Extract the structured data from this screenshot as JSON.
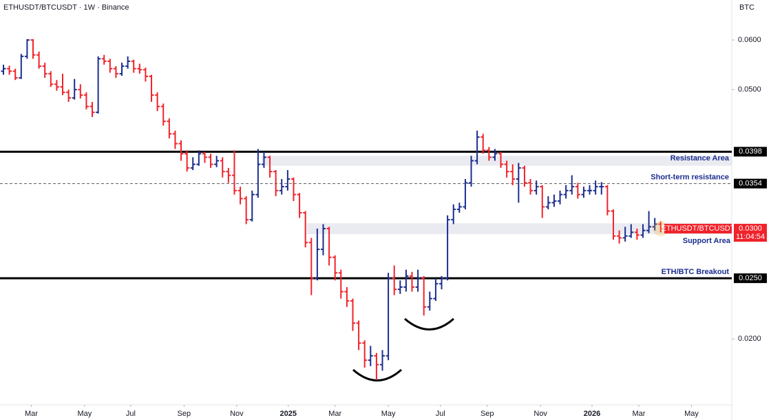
{
  "header": {
    "symbol": "ETHUSDT/BTCUSDT · 1W · Binance"
  },
  "chart_data": {
    "type": "ohlc",
    "currency": "BTC",
    "log_scale": true,
    "up_color": "#1a2d8f",
    "down_color": "#f0222a",
    "xlim": [
      -0.58,
      123.0
    ],
    "xticks": [
      {
        "value": 4.7,
        "label": "Mar"
      },
      {
        "value": 13.7,
        "label": "May"
      },
      {
        "value": 21.5,
        "label": "Jul"
      },
      {
        "value": 30.5,
        "label": "Sep"
      },
      {
        "value": 39.4,
        "label": "Nov"
      },
      {
        "value": 48.1,
        "label": "2025"
      },
      {
        "value": 56.0,
        "label": "Mar"
      },
      {
        "value": 65.0,
        "label": "May"
      },
      {
        "value": 73.8,
        "label": "Jul"
      },
      {
        "value": 81.7,
        "label": "Sep"
      },
      {
        "value": 90.7,
        "label": "Nov"
      },
      {
        "value": 99.4,
        "label": "2026"
      },
      {
        "value": 107.3,
        "label": "Mar"
      },
      {
        "value": 116.2,
        "label": "May"
      }
    ],
    "ylim": [
      0.0157,
      0.0695
    ],
    "yticks": [
      {
        "value": 0.06,
        "label": "0.0600"
      },
      {
        "value": 0.05,
        "label": "0.0500"
      },
      {
        "value": 0.02,
        "label": "0.0200"
      }
    ],
    "open": [
      0.0535,
      0.054,
      0.0535,
      0.0522,
      0.0565,
      0.06,
      0.0568,
      0.0545,
      0.053,
      0.051,
      0.0505,
      0.0495,
      0.0485,
      0.05,
      0.049,
      0.047,
      0.046,
      0.056,
      0.0555,
      0.054,
      0.053,
      0.0545,
      0.0555,
      0.054,
      0.0538,
      0.0525,
      0.049,
      0.047,
      0.0445,
      0.0425,
      0.041,
      0.0395,
      0.0375,
      0.038,
      0.0395,
      0.039,
      0.038,
      0.0385,
      0.037,
      0.0365,
      0.0345,
      0.0335,
      0.031,
      0.034,
      0.038,
      0.039,
      0.037,
      0.0345,
      0.035,
      0.036,
      0.034,
      0.0318,
      0.0285,
      0.025,
      0.0278,
      0.03,
      0.027,
      0.0255,
      0.0238,
      0.023,
      0.0212,
      0.0197,
      0.0185,
      0.0188,
      0.0182,
      0.0188,
      0.025,
      0.024,
      0.0242,
      0.0252,
      0.0242,
      0.025,
      0.0225,
      0.0232,
      0.0245,
      0.025,
      0.031,
      0.0322,
      0.0325,
      0.0355,
      0.0385,
      0.042,
      0.04,
      0.039,
      0.0395,
      0.038,
      0.037,
      0.036,
      0.0375,
      0.0355,
      0.0345,
      0.035,
      0.0325,
      0.033,
      0.0332,
      0.034,
      0.0345,
      0.035,
      0.034,
      0.0345,
      0.0345,
      0.035,
      0.035,
      0.032,
      0.0292,
      0.029,
      0.0292,
      0.0296,
      0.0293,
      0.0298,
      0.0302,
      0.0305
    ],
    "high": [
      0.0548,
      0.0546,
      0.054,
      0.057,
      0.0602,
      0.0602,
      0.0575,
      0.0552,
      0.0535,
      0.0518,
      0.053,
      0.05,
      0.052,
      0.051,
      0.0495,
      0.0478,
      0.0565,
      0.0568,
      0.056,
      0.0545,
      0.0552,
      0.0565,
      0.0558,
      0.055,
      0.0542,
      0.0528,
      0.0495,
      0.0475,
      0.045,
      0.043,
      0.0415,
      0.04,
      0.039,
      0.04,
      0.0398,
      0.0395,
      0.0392,
      0.039,
      0.0375,
      0.04,
      0.035,
      0.0338,
      0.0345,
      0.0402,
      0.0398,
      0.0392,
      0.0372,
      0.036,
      0.0372,
      0.0362,
      0.0342,
      0.032,
      0.029,
      0.03,
      0.0305,
      0.0302,
      0.0272,
      0.0258,
      0.0242,
      0.0232,
      0.0214,
      0.0199,
      0.0195,
      0.019,
      0.0192,
      0.0255,
      0.0262,
      0.0248,
      0.0258,
      0.0256,
      0.0258,
      0.0252,
      0.0238,
      0.025,
      0.0252,
      0.0315,
      0.0328,
      0.033,
      0.036,
      0.0392,
      0.043,
      0.0425,
      0.0405,
      0.0402,
      0.0398,
      0.0385,
      0.038,
      0.0382,
      0.0378,
      0.036,
      0.0358,
      0.0352,
      0.0338,
      0.034,
      0.0345,
      0.0352,
      0.0365,
      0.0355,
      0.035,
      0.0352,
      0.0358,
      0.0356,
      0.0352,
      0.0322,
      0.0298,
      0.0302,
      0.0305,
      0.03,
      0.0305,
      0.032,
      0.0312,
      0.0308
    ],
    "low": [
      0.0528,
      0.0528,
      0.0518,
      0.052,
      0.056,
      0.056,
      0.054,
      0.0522,
      0.0505,
      0.0498,
      0.049,
      0.0478,
      0.0482,
      0.0484,
      0.0465,
      0.0452,
      0.0458,
      0.0548,
      0.0532,
      0.0522,
      0.0526,
      0.054,
      0.0532,
      0.053,
      0.0515,
      0.0478,
      0.0462,
      0.0438,
      0.0418,
      0.0402,
      0.0385,
      0.037,
      0.0372,
      0.0378,
      0.0382,
      0.0375,
      0.0376,
      0.0362,
      0.0355,
      0.034,
      0.0328,
      0.0305,
      0.0308,
      0.0336,
      0.0375,
      0.0362,
      0.0338,
      0.034,
      0.0345,
      0.0332,
      0.0312,
      0.028,
      0.0235,
      0.0248,
      0.0272,
      0.0262,
      0.0248,
      0.0232,
      0.0225,
      0.0206,
      0.0192,
      0.018,
      0.0181,
      0.0172,
      0.0178,
      0.0185,
      0.0235,
      0.0236,
      0.0238,
      0.0238,
      0.0238,
      0.0218,
      0.0222,
      0.023,
      0.024,
      0.0248,
      0.0305,
      0.0318,
      0.0322,
      0.035,
      0.038,
      0.0395,
      0.0385,
      0.0385,
      0.0375,
      0.0362,
      0.0352,
      0.033,
      0.035,
      0.034,
      0.034,
      0.0312,
      0.0322,
      0.0325,
      0.0328,
      0.0335,
      0.034,
      0.0335,
      0.0336,
      0.034,
      0.034,
      0.034,
      0.0315,
      0.0288,
      0.0284,
      0.0286,
      0.029,
      0.0288,
      0.029,
      0.0295,
      0.0298,
      0.0296
    ],
    "close": [
      0.054,
      0.0535,
      0.0522,
      0.0565,
      0.06,
      0.0568,
      0.0545,
      0.053,
      0.051,
      0.0505,
      0.0495,
      0.0485,
      0.05,
      0.049,
      0.047,
      0.046,
      0.056,
      0.0555,
      0.054,
      0.053,
      0.0545,
      0.0555,
      0.054,
      0.0538,
      0.0525,
      0.049,
      0.047,
      0.0445,
      0.0425,
      0.041,
      0.0395,
      0.0375,
      0.038,
      0.0395,
      0.039,
      0.038,
      0.0385,
      0.037,
      0.0365,
      0.0345,
      0.0335,
      0.031,
      0.034,
      0.038,
      0.039,
      0.037,
      0.0345,
      0.035,
      0.036,
      0.034,
      0.0318,
      0.0285,
      0.025,
      0.0278,
      0.03,
      0.027,
      0.0255,
      0.0238,
      0.023,
      0.0212,
      0.0197,
      0.0185,
      0.0188,
      0.0182,
      0.0188,
      0.025,
      0.024,
      0.0242,
      0.0252,
      0.0242,
      0.025,
      0.0225,
      0.0232,
      0.0245,
      0.025,
      0.031,
      0.0322,
      0.0325,
      0.0355,
      0.0385,
      0.042,
      0.04,
      0.039,
      0.0395,
      0.038,
      0.037,
      0.036,
      0.0375,
      0.0355,
      0.0345,
      0.035,
      0.0325,
      0.033,
      0.0332,
      0.034,
      0.0345,
      0.035,
      0.034,
      0.0345,
      0.0345,
      0.035,
      0.035,
      0.032,
      0.0292,
      0.029,
      0.0292,
      0.0296,
      0.0293,
      0.0298,
      0.0302,
      0.0305,
      0.03
    ],
    "levels": [
      {
        "value": 0.0398,
        "label": "0.0398",
        "style": "solid",
        "name": "Resistance Area"
      },
      {
        "value": 0.0354,
        "label": "0.0354",
        "style": "dashed",
        "name": "Short-term resistance"
      },
      {
        "value": 0.025,
        "label": "0.0250",
        "style": "solid",
        "name": "ETH/BTC Breakout"
      }
    ],
    "zones": [
      {
        "low": 0.0378,
        "high": 0.0392,
        "start": 43.6
      },
      {
        "low": 0.0294,
        "high": 0.0306,
        "start": 51.2,
        "name": "Support Area"
      }
    ],
    "last_price": {
      "value": 0.03,
      "label": "0.0300",
      "symbol": "ETHUSDT/BTCUSDT",
      "countdown": "11:04:54"
    }
  }
}
